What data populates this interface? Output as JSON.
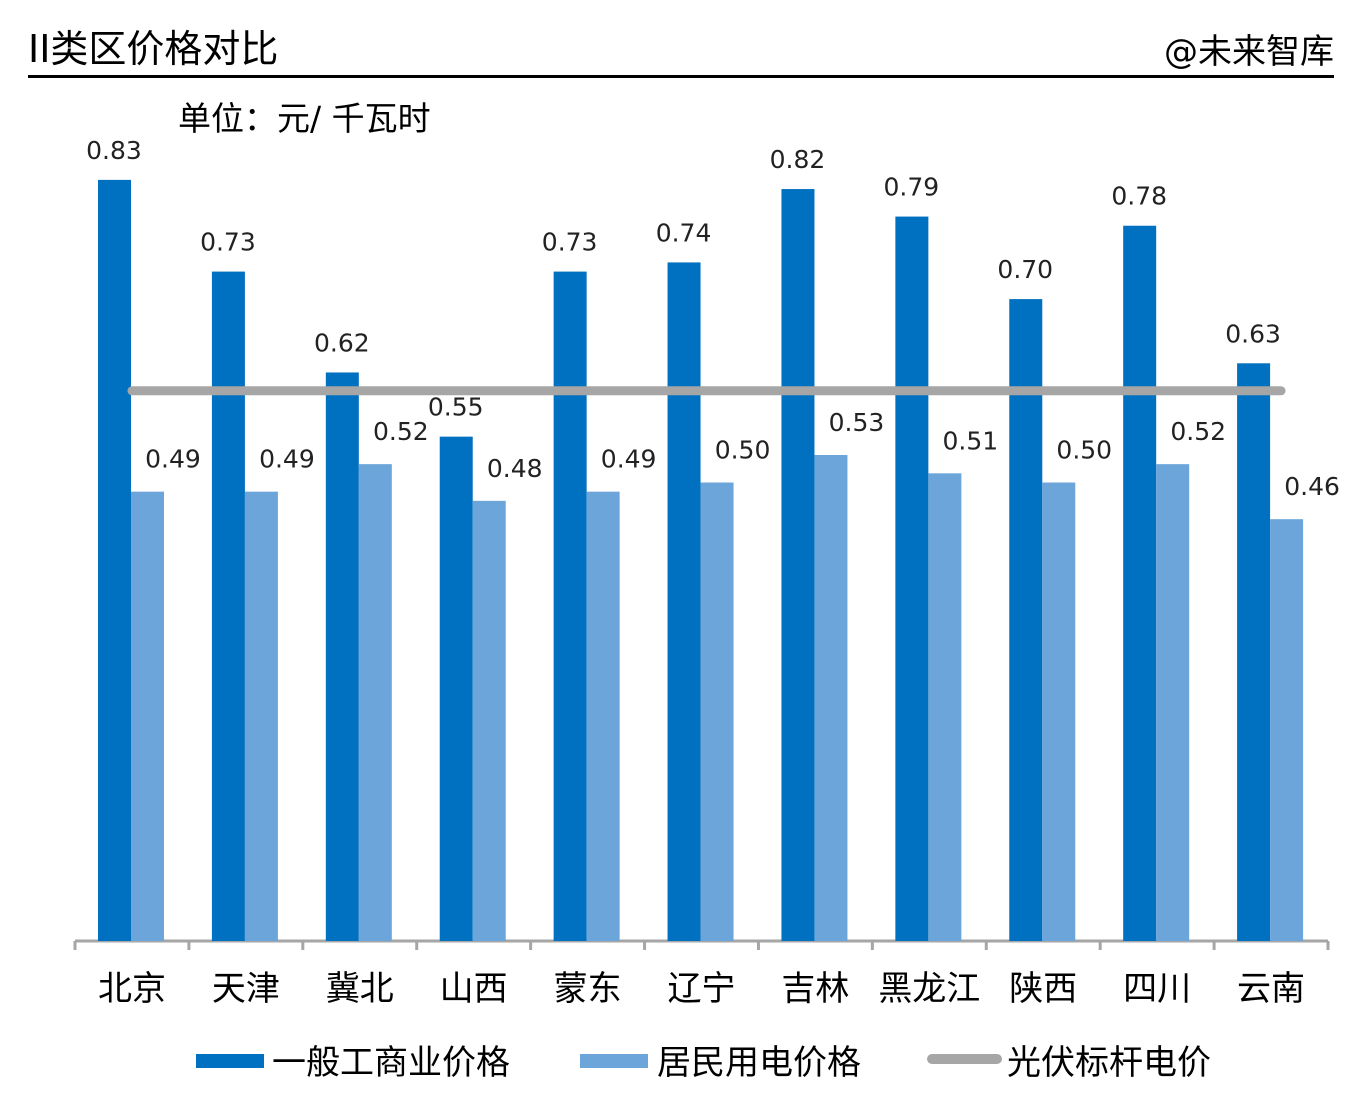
{
  "title": "II类区价格对比",
  "unit": "单位：元/ 千瓦时",
  "watermark": "@未来智库",
  "chart_data": {
    "type": "bar",
    "title": "II类区价格对比",
    "ylabel": "单位：元/ 千瓦时",
    "ylim": [
      0,
      0.83
    ],
    "grid": false,
    "legend": "bottom",
    "categories": [
      "北京",
      "天津",
      "冀北",
      "山西",
      "蒙东",
      "辽宁",
      "吉林",
      "黑龙江",
      "陕西",
      "四川",
      "云南"
    ],
    "series": [
      {
        "name": "一般工商业价格",
        "color": "#0070C0",
        "values": [
          0.83,
          0.73,
          0.62,
          0.55,
          0.73,
          0.74,
          0.82,
          0.79,
          0.7,
          0.78,
          0.63
        ],
        "labels": [
          "0.83",
          "0.73",
          "0.62",
          "0.55",
          "0.73",
          "0.74",
          "0.82",
          "0.79",
          "0.70",
          "0.78",
          "0.63"
        ]
      },
      {
        "name": "居民用电价格",
        "color": "#6CA5DA",
        "values": [
          0.49,
          0.49,
          0.52,
          0.48,
          0.49,
          0.5,
          0.53,
          0.51,
          0.5,
          0.52,
          0.46
        ],
        "labels": [
          "0.49",
          "0.49",
          "0.52",
          "0.48",
          "0.49",
          "0.50",
          "0.53",
          "0.51",
          "0.50",
          "0.52",
          "0.46"
        ]
      },
      {
        "name": "光伏标杆电价",
        "type": "line",
        "color": "#A6A6A6",
        "value": 0.6
      }
    ]
  }
}
